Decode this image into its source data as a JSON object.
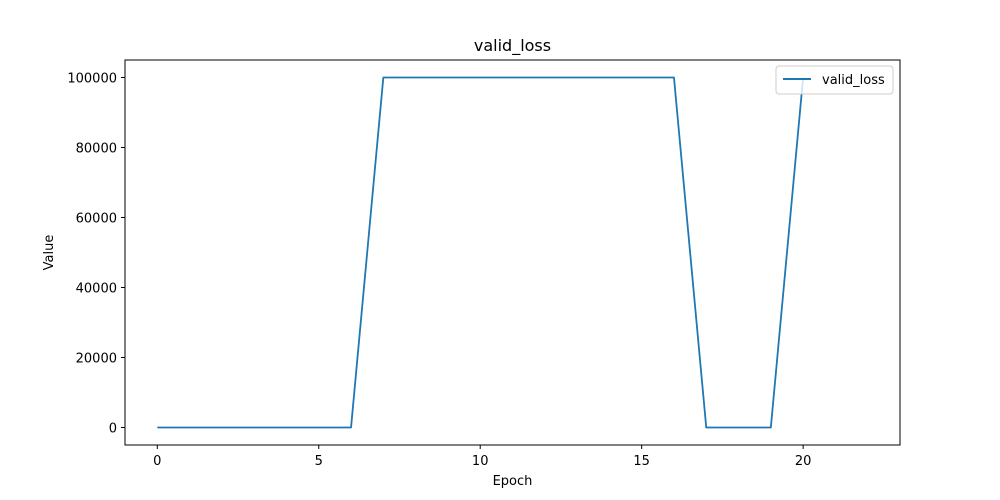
{
  "chart_data": {
    "type": "line",
    "title": "valid_loss",
    "xlabel": "Epoch",
    "ylabel": "Value",
    "xlim": [
      -1,
      23
    ],
    "ylim": [
      -5000,
      105000
    ],
    "xticks": [
      0,
      5,
      10,
      15,
      20
    ],
    "yticks": [
      0,
      20000,
      40000,
      60000,
      80000,
      100000
    ],
    "legend": "top-right",
    "grid": false,
    "series": [
      {
        "name": "valid_loss",
        "color": "#1f77b4",
        "x": [
          0,
          1,
          2,
          3,
          4,
          5,
          6,
          7,
          8,
          9,
          10,
          11,
          12,
          13,
          14,
          15,
          16,
          17,
          18,
          19,
          20
        ],
        "y": [
          0,
          0,
          0,
          0,
          0,
          0,
          0,
          100000,
          100000,
          100000,
          100000,
          100000,
          100000,
          100000,
          100000,
          100000,
          100000,
          0,
          0,
          0,
          100000
        ]
      }
    ]
  }
}
